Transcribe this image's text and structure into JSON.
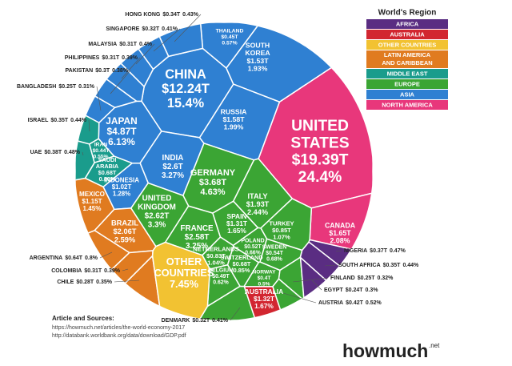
{
  "chart_data": {
    "type": "voronoi",
    "legend_title": "World's Region",
    "regions": [
      {
        "name": "AFRICA",
        "color": "#5a2d82"
      },
      {
        "name": "AUSTRALIA",
        "color": "#d22630"
      },
      {
        "name": "OTHER COUNTRIES",
        "color": "#f2c232"
      },
      {
        "name": "LATIN AMERICA AND CARIBBEAN",
        "color": "#e07b20"
      },
      {
        "name": "MIDDLE EAST",
        "color": "#1a9c8c"
      },
      {
        "name": "EUROPE",
        "color": "#3ba534"
      },
      {
        "name": "ASIA",
        "color": "#2f80d2"
      },
      {
        "name": "NORTH AMERICA",
        "color": "#e8377b"
      }
    ],
    "countries": [
      {
        "name": "UNITED STATES",
        "region": "NORTH AMERICA",
        "value": 19.39,
        "value_label": "$19.39T",
        "share": 24.4,
        "share_label": "24.4%"
      },
      {
        "name": "CANADA",
        "region": "NORTH AMERICA",
        "value": 1.65,
        "value_label": "$1.65T",
        "share": 2.08,
        "share_label": "2.08%"
      },
      {
        "name": "CHINA",
        "region": "ASIA",
        "value": 12.24,
        "value_label": "$12.24T",
        "share": 15.4,
        "share_label": "15.4%"
      },
      {
        "name": "JAPAN",
        "region": "ASIA",
        "value": 4.87,
        "value_label": "$4.87T",
        "share": 6.13,
        "share_label": "6.13%"
      },
      {
        "name": "INDIA",
        "region": "ASIA",
        "value": 2.6,
        "value_label": "$2.6T",
        "share": 3.27,
        "share_label": "3.27%"
      },
      {
        "name": "INDONESIA",
        "region": "ASIA",
        "value": 1.02,
        "value_label": "$1.02T",
        "share": 1.28,
        "share_label": "1.28%"
      },
      {
        "name": "SOUTH KOREA",
        "region": "ASIA",
        "value": 1.53,
        "value_label": "$1.53T",
        "share": 1.93,
        "share_label": "1.93%"
      },
      {
        "name": "THAILAND",
        "region": "ASIA",
        "value": 0.45,
        "value_label": "$0.45T",
        "share": 0.57,
        "share_label": "0.57%"
      },
      {
        "name": "RUSSIA",
        "region": "ASIA",
        "value": 1.58,
        "value_label": "$1.58T",
        "share": 1.99,
        "share_label": "1.99%"
      },
      {
        "name": "HONG KONG",
        "region": "ASIA",
        "value": 0.34,
        "value_label": "$0.34T",
        "share": 0.43,
        "share_label": "0.43%"
      },
      {
        "name": "SINGAPORE",
        "region": "ASIA",
        "value": 0.32,
        "value_label": "$0.32T",
        "share": 0.41,
        "share_label": "0.41%"
      },
      {
        "name": "MALAYSIA",
        "region": "ASIA",
        "value": 0.31,
        "value_label": "$0.31T",
        "share": 0.4,
        "share_label": "0.4%"
      },
      {
        "name": "PHILIPPINES",
        "region": "ASIA",
        "value": 0.31,
        "value_label": "$0.31T",
        "share": 0.39,
        "share_label": "0.39%"
      },
      {
        "name": "PAKISTAN",
        "region": "ASIA",
        "value": 0.3,
        "value_label": "$0.3T",
        "share": 0.38,
        "share_label": "0.38%"
      },
      {
        "name": "BANGLADESH",
        "region": "ASIA",
        "value": 0.25,
        "value_label": "$0.25T",
        "share": 0.31,
        "share_label": "0.31%"
      },
      {
        "name": "ISRAEL",
        "region": "MIDDLE EAST",
        "value": 0.35,
        "value_label": "$0.35T",
        "share": 0.44,
        "share_label": "0.44%"
      },
      {
        "name": "UAE",
        "region": "MIDDLE EAST",
        "value": 0.38,
        "value_label": "$0.38T",
        "share": 0.48,
        "share_label": "0.48%"
      },
      {
        "name": "IRAN",
        "region": "MIDDLE EAST",
        "value": 0.44,
        "value_label": "$0.44T",
        "share": 0.55,
        "share_label": "0.55%"
      },
      {
        "name": "SAUDI ARABIA",
        "region": "MIDDLE EAST",
        "value": 0.68,
        "value_label": "$0.68T",
        "share": 0.86,
        "share_label": "0.86%"
      },
      {
        "name": "MEXICO",
        "region": "LATIN AMERICA AND CARIBBEAN",
        "value": 1.15,
        "value_label": "$1.15T",
        "share": 1.45,
        "share_label": "1.45%"
      },
      {
        "name": "BRAZIL",
        "region": "LATIN AMERICA AND CARIBBEAN",
        "value": 2.06,
        "value_label": "$2.06T",
        "share": 2.59,
        "share_label": "2.59%"
      },
      {
        "name": "ARGENTINA",
        "region": "LATIN AMERICA AND CARIBBEAN",
        "value": 0.64,
        "value_label": "$0.64T",
        "share": 0.8,
        "share_label": "0.8%"
      },
      {
        "name": "COLOMBIA",
        "region": "LATIN AMERICA AND CARIBBEAN",
        "value": 0.31,
        "value_label": "$0.31T",
        "share": 0.39,
        "share_label": "0.39%"
      },
      {
        "name": "CHILE",
        "region": "LATIN AMERICA AND CARIBBEAN",
        "value": 0.28,
        "value_label": "$0.28T",
        "share": 0.35,
        "share_label": "0.35%"
      },
      {
        "name": "GERMANY",
        "region": "EUROPE",
        "value": 3.68,
        "value_label": "$3.68T",
        "share": 4.63,
        "share_label": "4.63%"
      },
      {
        "name": "UNITED KINGDOM",
        "region": "EUROPE",
        "value": 2.62,
        "value_label": "$2.62T",
        "share": 3.3,
        "share_label": "3.3%"
      },
      {
        "name": "FRANCE",
        "region": "EUROPE",
        "value": 2.58,
        "value_label": "$2.58T",
        "share": 3.25,
        "share_label": "3.25%"
      },
      {
        "name": "ITALY",
        "region": "EUROPE",
        "value": 1.93,
        "value_label": "$1.93T",
        "share": 2.44,
        "share_label": "2.44%"
      },
      {
        "name": "SPAIN",
        "region": "EUROPE",
        "value": 1.31,
        "value_label": "$1.31T",
        "share": 1.65,
        "share_label": "1.65%"
      },
      {
        "name": "NETHERLANDS",
        "region": "EUROPE",
        "value": 0.83,
        "value_label": "$0.83T",
        "share": 1.04,
        "share_label": "1.04%"
      },
      {
        "name": "TURKEY",
        "region": "EUROPE",
        "value": 0.85,
        "value_label": "$0.85T",
        "share": 1.07,
        "share_label": "1.07%"
      },
      {
        "name": "SWITZERLAND",
        "region": "EUROPE",
        "value": 0.68,
        "value_label": "$0.68T",
        "share": 0.85,
        "share_label": "0.85%"
      },
      {
        "name": "POLAND",
        "region": "EUROPE",
        "value": 0.52,
        "value_label": "$0.52T",
        "share": 0.66,
        "share_label": "0.66%"
      },
      {
        "name": "SWEDEN",
        "region": "EUROPE",
        "value": 0.54,
        "value_label": "$0.54T",
        "share": 0.68,
        "share_label": "0.68%"
      },
      {
        "name": "BELGIUM",
        "region": "EUROPE",
        "value": 0.49,
        "value_label": "$0.49T",
        "share": 0.62,
        "share_label": "0.62%"
      },
      {
        "name": "NORWAY",
        "region": "EUROPE",
        "value": 0.4,
        "value_label": "$0.4T",
        "share": 0.5,
        "share_label": "0.5%"
      },
      {
        "name": "DENMARK",
        "region": "EUROPE",
        "value": 0.32,
        "value_label": "$0.32T",
        "share": 0.41,
        "share_label": "0.41%"
      },
      {
        "name": "FINLAND",
        "region": "EUROPE",
        "value": 0.25,
        "value_label": "$0.25T",
        "share": 0.32,
        "share_label": "0.32%"
      },
      {
        "name": "AUSTRIA",
        "region": "EUROPE",
        "value": 0.42,
        "value_label": "$0.42T",
        "share": 0.52,
        "share_label": "0.52%"
      },
      {
        "name": "NIGERIA",
        "region": "AFRICA",
        "value": 0.37,
        "value_label": "$0.37T",
        "share": 0.47,
        "share_label": "0.47%"
      },
      {
        "name": "SOUTH AFRICA",
        "region": "AFRICA",
        "value": 0.35,
        "value_label": "$0.35T",
        "share": 0.44,
        "share_label": "0.44%"
      },
      {
        "name": "EGYPT",
        "region": "AFRICA",
        "value": 0.24,
        "value_label": "$0.24T",
        "share": 0.3,
        "share_label": "0.3%"
      },
      {
        "name": "AUSTRALIA",
        "region": "AUSTRALIA",
        "value": 1.32,
        "value_label": "$1.32T",
        "share": 1.67,
        "share_label": "1.67%"
      },
      {
        "name": "OTHER COUNTRIES",
        "region": "OTHER COUNTRIES",
        "share": 7.45,
        "share_label": "7.45%"
      }
    ]
  },
  "sources": {
    "heading": "Article and Sources:",
    "links": [
      "https://howmuch.net/articles/the-world-economy-2017",
      "http://databank.worldbank.org/data/download/GDP.pdf"
    ]
  },
  "logo": {
    "name": "howmuch",
    "suffix": ".net"
  }
}
